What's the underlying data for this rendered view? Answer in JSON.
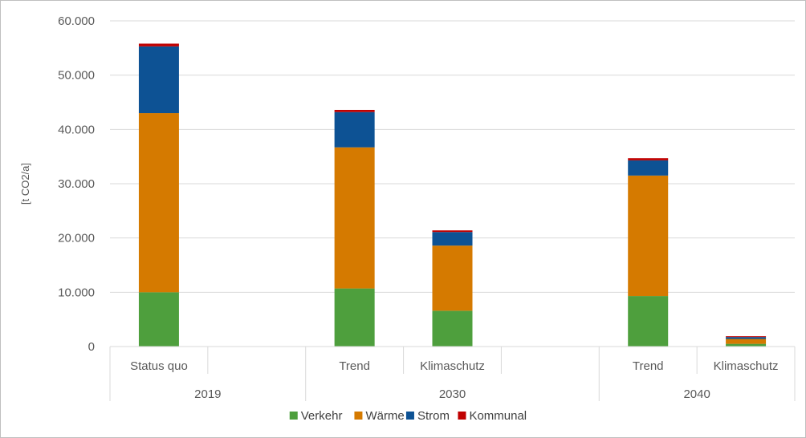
{
  "chart_data": {
    "type": "bar",
    "stacked": true,
    "ylabel": "[t CO2/a]",
    "ylim": [
      0,
      60000
    ],
    "y_ticks": [
      0,
      10000,
      20000,
      30000,
      40000,
      50000,
      60000
    ],
    "y_tick_labels": [
      "0",
      "10.000",
      "20.000",
      "30.000",
      "40.000",
      "50.000",
      "60.000"
    ],
    "grid": true,
    "legend_position": "bottom",
    "categories": [
      "Status quo",
      "",
      "Trend",
      "Klimaschutz",
      "",
      "Trend",
      "Klimaschutz"
    ],
    "groups": [
      {
        "label": "2019",
        "span": 2
      },
      {
        "label": "2030",
        "span": 3
      },
      {
        "label": "2040",
        "span": 2
      }
    ],
    "series": [
      {
        "name": "Verkehr",
        "color": "#4e9f3d",
        "values": [
          10000,
          null,
          10700,
          6600,
          null,
          9300,
          500
        ]
      },
      {
        "name": "Wärme",
        "color": "#d57a00",
        "values": [
          33000,
          null,
          26000,
          12000,
          null,
          22200,
          900
        ]
      },
      {
        "name": "Strom",
        "color": "#0d5294",
        "values": [
          12300,
          null,
          6500,
          2500,
          null,
          2800,
          350
        ]
      },
      {
        "name": "Kommunal",
        "color": "#c00000",
        "values": [
          500,
          null,
          400,
          300,
          null,
          400,
          150
        ]
      }
    ]
  }
}
